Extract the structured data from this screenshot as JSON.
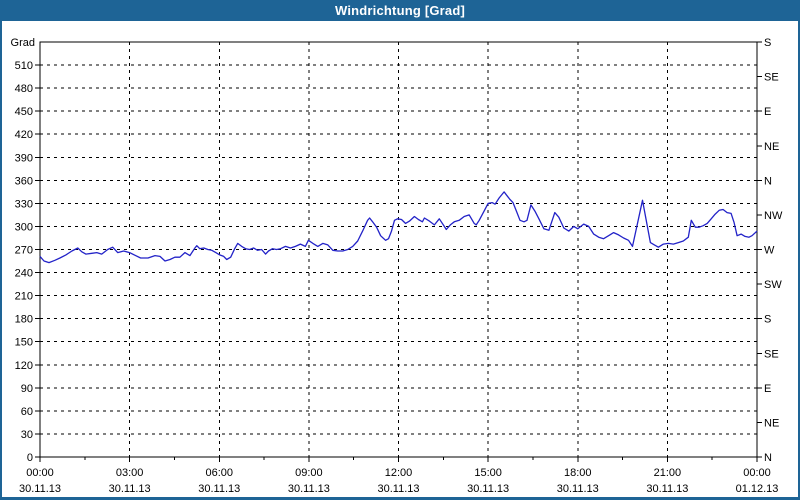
{
  "window": {
    "title": "Windrichtung [Grad]",
    "titlebar_color": "#1e6496",
    "border_color": "#1e6496",
    "background": "#ffffff"
  },
  "chart_data": {
    "type": "line",
    "title": "Windrichtung [Grad]",
    "y_axis_left_title": "Grad",
    "y_left_ticks": [
      0,
      30,
      60,
      90,
      120,
      150,
      180,
      210,
      240,
      270,
      300,
      330,
      360,
      390,
      420,
      450,
      480,
      510
    ],
    "y_range": [
      0,
      540
    ],
    "y_right_labels": [
      [
        540,
        "S"
      ],
      [
        495,
        "SE"
      ],
      [
        450,
        "E"
      ],
      [
        405,
        "NE"
      ],
      [
        360,
        "N"
      ],
      [
        315,
        "NW"
      ],
      [
        270,
        "W"
      ],
      [
        225,
        "SW"
      ],
      [
        180,
        "S"
      ],
      [
        135,
        "SE"
      ],
      [
        90,
        "E"
      ],
      [
        45,
        "NE"
      ],
      [
        0,
        "N"
      ]
    ],
    "x_ticks": [
      {
        "minutes": 0,
        "time": "00:00",
        "date": "30.11.13"
      },
      {
        "minutes": 180,
        "time": "03:00",
        "date": "30.11.13"
      },
      {
        "minutes": 360,
        "time": "06:00",
        "date": "30.11.13"
      },
      {
        "minutes": 540,
        "time": "09:00",
        "date": "30.11.13"
      },
      {
        "minutes": 720,
        "time": "12:00",
        "date": "30.11.13"
      },
      {
        "minutes": 900,
        "time": "15:00",
        "date": "30.11.13"
      },
      {
        "minutes": 1080,
        "time": "18:00",
        "date": "30.11.13"
      },
      {
        "minutes": 1260,
        "time": "21:00",
        "date": "30.11.13"
      },
      {
        "minutes": 1440,
        "time": "00:00",
        "date": "01.12.13"
      }
    ],
    "x_minor_step_minutes": 90,
    "x_range_minutes": [
      0,
      1440
    ],
    "grid": true,
    "grid_color": "#000000",
    "axis_color": "#000000",
    "line_color": "#2323c8",
    "series": [
      {
        "name": "Windrichtung",
        "unit": "Grad",
        "points": [
          [
            0,
            261
          ],
          [
            8,
            255
          ],
          [
            18,
            253
          ],
          [
            30,
            256
          ],
          [
            40,
            259
          ],
          [
            52,
            263
          ],
          [
            64,
            268
          ],
          [
            76,
            272
          ],
          [
            84,
            267
          ],
          [
            92,
            264
          ],
          [
            104,
            265
          ],
          [
            114,
            266
          ],
          [
            124,
            264
          ],
          [
            136,
            270
          ],
          [
            146,
            273
          ],
          [
            156,
            266
          ],
          [
            168,
            268
          ],
          [
            180,
            266
          ],
          [
            192,
            262
          ],
          [
            202,
            259
          ],
          [
            217,
            259
          ],
          [
            231,
            262
          ],
          [
            241,
            261
          ],
          [
            251,
            255
          ],
          [
            261,
            257
          ],
          [
            271,
            260
          ],
          [
            281,
            260
          ],
          [
            291,
            266
          ],
          [
            301,
            262
          ],
          [
            311,
            272
          ],
          [
            315,
            275
          ],
          [
            321,
            271
          ],
          [
            329,
            272
          ],
          [
            337,
            270
          ],
          [
            345,
            269
          ],
          [
            353,
            266
          ],
          [
            361,
            263
          ],
          [
            369,
            261
          ],
          [
            375,
            257
          ],
          [
            383,
            260
          ],
          [
            391,
            271
          ],
          [
            397,
            278
          ],
          [
            405,
            274
          ],
          [
            413,
            271
          ],
          [
            421,
            270
          ],
          [
            429,
            272
          ],
          [
            437,
            269
          ],
          [
            445,
            270
          ],
          [
            453,
            264
          ],
          [
            459,
            268
          ],
          [
            467,
            271
          ],
          [
            475,
            270
          ],
          [
            483,
            271
          ],
          [
            493,
            274
          ],
          [
            503,
            272
          ],
          [
            513,
            274
          ],
          [
            523,
            277
          ],
          [
            533,
            274
          ],
          [
            539,
            282
          ],
          [
            548,
            278
          ],
          [
            558,
            274
          ],
          [
            568,
            278
          ],
          [
            578,
            276
          ],
          [
            588,
            269
          ],
          [
            598,
            268
          ],
          [
            608,
            268
          ],
          [
            618,
            270
          ],
          [
            628,
            274
          ],
          [
            638,
            281
          ],
          [
            648,
            294
          ],
          [
            658,
            308
          ],
          [
            662,
            311
          ],
          [
            668,
            306
          ],
          [
            676,
            299
          ],
          [
            684,
            288
          ],
          [
            694,
            282
          ],
          [
            700,
            284
          ],
          [
            706,
            294
          ],
          [
            712,
            308
          ],
          [
            718,
            310
          ],
          [
            726,
            309
          ],
          [
            734,
            304
          ],
          [
            742,
            307
          ],
          [
            752,
            313
          ],
          [
            760,
            309
          ],
          [
            768,
            306
          ],
          [
            772,
            311
          ],
          [
            782,
            307
          ],
          [
            792,
            302
          ],
          [
            802,
            310
          ],
          [
            812,
            300
          ],
          [
            816,
            296
          ],
          [
            824,
            302
          ],
          [
            832,
            306
          ],
          [
            842,
            308
          ],
          [
            852,
            313
          ],
          [
            862,
            315
          ],
          [
            872,
            304
          ],
          [
            876,
            302
          ],
          [
            882,
            308
          ],
          [
            892,
            320
          ],
          [
            900,
            330
          ],
          [
            908,
            331
          ],
          [
            914,
            329
          ],
          [
            922,
            337
          ],
          [
            932,
            345
          ],
          [
            938,
            340
          ],
          [
            944,
            335
          ],
          [
            950,
            331
          ],
          [
            958,
            318
          ],
          [
            964,
            308
          ],
          [
            972,
            306
          ],
          [
            978,
            308
          ],
          [
            986,
            328
          ],
          [
            994,
            320
          ],
          [
            1002,
            310
          ],
          [
            1012,
            297
          ],
          [
            1022,
            295
          ],
          [
            1034,
            318
          ],
          [
            1042,
            312
          ],
          [
            1052,
            298
          ],
          [
            1062,
            294
          ],
          [
            1072,
            300
          ],
          [
            1080,
            297
          ],
          [
            1092,
            303
          ],
          [
            1102,
            300
          ],
          [
            1112,
            290
          ],
          [
            1122,
            286
          ],
          [
            1132,
            284
          ],
          [
            1142,
            288
          ],
          [
            1152,
            292
          ],
          [
            1162,
            289
          ],
          [
            1172,
            285
          ],
          [
            1182,
            282
          ],
          [
            1190,
            274
          ],
          [
            1198,
            298
          ],
          [
            1210,
            334
          ],
          [
            1218,
            306
          ],
          [
            1226,
            279
          ],
          [
            1234,
            276
          ],
          [
            1242,
            273
          ],
          [
            1252,
            277
          ],
          [
            1262,
            278
          ],
          [
            1272,
            277
          ],
          [
            1282,
            279
          ],
          [
            1292,
            281
          ],
          [
            1302,
            286
          ],
          [
            1308,
            308
          ],
          [
            1316,
            299
          ],
          [
            1324,
            299
          ],
          [
            1332,
            301
          ],
          [
            1340,
            304
          ],
          [
            1348,
            310
          ],
          [
            1356,
            316
          ],
          [
            1364,
            321
          ],
          [
            1372,
            322
          ],
          [
            1380,
            318
          ],
          [
            1388,
            317
          ],
          [
            1394,
            305
          ],
          [
            1400,
            288
          ],
          [
            1408,
            290
          ],
          [
            1416,
            287
          ],
          [
            1424,
            286
          ],
          [
            1430,
            288
          ],
          [
            1440,
            294
          ]
        ]
      }
    ]
  }
}
